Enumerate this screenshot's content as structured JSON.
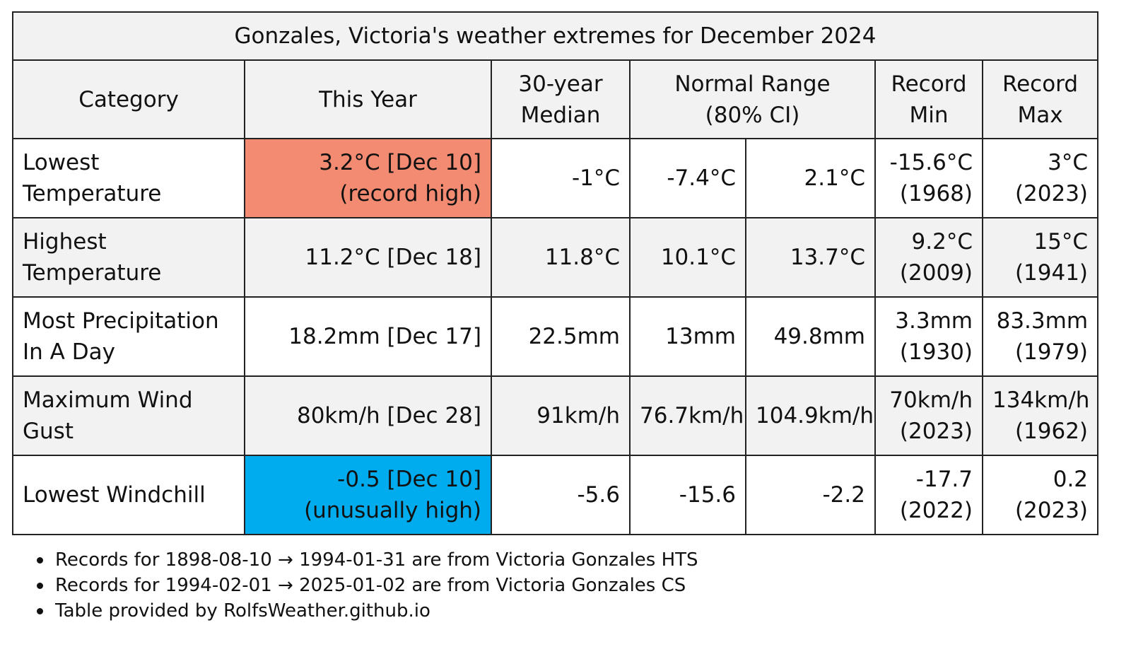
{
  "title": "Gonzales, Victoria's weather extremes for December 2024",
  "headers": {
    "category": "Category",
    "this_year": "This Year",
    "median_l1": "30-year",
    "median_l2": "Median",
    "normal_l1": "Normal Range",
    "normal_l2": "(80% CI)",
    "rmin_l1": "Record",
    "rmin_l2": "Min",
    "rmax_l1": "Record",
    "rmax_l2": "Max"
  },
  "rows": [
    {
      "cat_l1": "Lowest",
      "cat_l2": "Temperature",
      "this_l1": "3.2°C [Dec 10]",
      "this_l2": "(record high)",
      "median": "-1°C",
      "normal_low": "-7.4°C",
      "normal_high": "2.1°C",
      "rmin_l1": "-15.6°C",
      "rmin_l2": "(1968)",
      "rmax_l1": "3°C",
      "rmax_l2": "(2023)"
    },
    {
      "cat_l1": "Highest",
      "cat_l2": "Temperature",
      "this_l1": "11.2°C [Dec 18]",
      "this_l2": "",
      "median": "11.8°C",
      "normal_low": "10.1°C",
      "normal_high": "13.7°C",
      "rmin_l1": "9.2°C",
      "rmin_l2": "(2009)",
      "rmax_l1": "15°C",
      "rmax_l2": "(1941)"
    },
    {
      "cat_l1": "Most Precipitation",
      "cat_l2": "In A Day",
      "this_l1": "18.2mm [Dec 17]",
      "this_l2": "",
      "median": "22.5mm",
      "normal_low": "13mm",
      "normal_high": "49.8mm",
      "rmin_l1": "3.3mm",
      "rmin_l2": "(1930)",
      "rmax_l1": "83.3mm",
      "rmax_l2": "(1979)"
    },
    {
      "cat_l1": "Maximum Wind",
      "cat_l2": "Gust",
      "this_l1": "80km/h [Dec 28]",
      "this_l2": "",
      "median": "91km/h",
      "normal_low": "76.7km/h",
      "normal_high": "104.9km/h",
      "rmin_l1": "70km/h",
      "rmin_l2": "(2023)",
      "rmax_l1": "134km/h",
      "rmax_l2": "(1962)"
    },
    {
      "cat_l1": "Lowest Windchill",
      "cat_l2": "",
      "this_l1": "-0.5 [Dec 10]",
      "this_l2": "(unusually high)",
      "median": "-5.6",
      "normal_low": "-15.6",
      "normal_high": "-2.2",
      "rmin_l1": "-17.7",
      "rmin_l2": "(2022)",
      "rmax_l1": "0.2",
      "rmax_l2": "(2023)"
    }
  ],
  "highlight_colors": {
    "record_high": "#f28b72",
    "unusually_high": "#00aced"
  },
  "notes": [
    "Records for 1898-08-10 → 1994-01-31 are from Victoria Gonzales HTS",
    "Records for 1994-02-01 → 2025-01-02 are from Victoria Gonzales CS",
    "Table provided by RolfsWeather.github.io"
  ]
}
